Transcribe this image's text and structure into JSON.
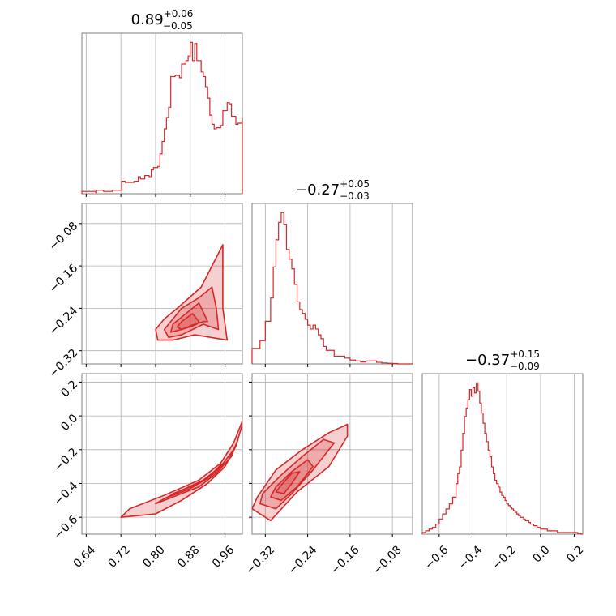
{
  "chart_data": {
    "type": "corner",
    "color": "#d62728",
    "grid": true,
    "parameters": [
      {
        "title": {
          "median": "0.89",
          "plus": "+0.06",
          "minus": "−0.05"
        },
        "range": [
          0.63,
          1.0
        ],
        "ticks": [
          0.64,
          0.72,
          0.8,
          0.88,
          0.96
        ],
        "tick_labels": [
          "0.64",
          "0.72",
          "0.80",
          "0.88",
          "0.96"
        ],
        "hist": {
          "x": [
            0.63,
            0.662,
            0.664,
            0.68,
            0.7,
            0.722,
            0.73,
            0.75,
            0.76,
            0.765,
            0.775,
            0.785,
            0.79,
            0.795,
            0.805,
            0.81,
            0.815,
            0.82,
            0.825,
            0.83,
            0.835,
            0.845,
            0.855,
            0.86,
            0.87,
            0.875,
            0.88,
            0.885,
            0.89,
            0.895,
            0.905,
            0.91,
            0.915,
            0.92,
            0.925,
            0.93,
            0.935,
            0.94,
            0.95,
            0.955,
            0.965,
            0.97,
            0.975,
            0.985,
            0.99,
            1.0
          ],
          "y": [
            1.0,
            0.5,
            1.5,
            1.0,
            1.5,
            5.5,
            5.0,
            5.5,
            7.5,
            6.5,
            8.0,
            7.5,
            10.5,
            11.5,
            12.0,
            17.5,
            23.0,
            28.5,
            33.5,
            38.0,
            51.5,
            52.0,
            51.0,
            57.0,
            58.5,
            60.5,
            66.5,
            58.5,
            66.0,
            58.5,
            53.5,
            51.5,
            47.0,
            42.0,
            34.5,
            30.5,
            28.5,
            29.0,
            30.0,
            36.5,
            40.0,
            39.5,
            34.0,
            30.5,
            31.0,
            33.0
          ]
        }
      },
      {
        "title": {
          "median": "−0.27",
          "plus": "+0.05",
          "minus": "−0.03"
        },
        "range": [
          -0.345,
          -0.042
        ],
        "ticks": [
          -0.32,
          -0.24,
          -0.16,
          -0.08
        ],
        "tick_labels": [
          "−0.32",
          "−0.24",
          "−0.16",
          "−0.08"
        ],
        "hist": {
          "x": [
            -0.345,
            -0.33,
            -0.32,
            -0.31,
            -0.305,
            -0.3,
            -0.295,
            -0.29,
            -0.285,
            -0.28,
            -0.275,
            -0.27,
            -0.265,
            -0.26,
            -0.255,
            -0.25,
            -0.245,
            -0.24,
            -0.235,
            -0.23,
            -0.225,
            -0.22,
            -0.215,
            -0.21,
            -0.205,
            -0.2,
            -0.19,
            -0.18,
            -0.17,
            -0.16,
            -0.15,
            -0.14,
            -0.13,
            -0.11,
            -0.1,
            -0.09,
            -0.08,
            -0.07
          ],
          "y": [
            8,
            12,
            22,
            34,
            50,
            64,
            73,
            78,
            72,
            59,
            54,
            49,
            41,
            32,
            28,
            26,
            23,
            20,
            18,
            20,
            18,
            15,
            13,
            9,
            7,
            7,
            4,
            4,
            3,
            2,
            1.5,
            1,
            1.5,
            0.8,
            0.5,
            0.3,
            0.2,
            0
          ]
        },
        "contours": [
          {
            "levels": [
              [
                [
                  0.965,
                  -0.3
                ],
                [
                  0.955,
                  -0.24
                ],
                [
                  0.955,
                  -0.12
                ],
                [
                  0.905,
                  -0.2
                ],
                [
                  0.85,
                  -0.24
                ],
                [
                  0.82,
                  -0.26
                ],
                [
                  0.8,
                  -0.28
                ],
                [
                  0.805,
                  -0.3
                ],
                [
                  0.84,
                  -0.3
                ],
                [
                  0.89,
                  -0.29
                ]
              ],
              [
                [
                  0.945,
                  -0.28
                ],
                [
                  0.94,
                  -0.24
                ],
                [
                  0.93,
                  -0.2
                ],
                [
                  0.9,
                  -0.22
                ],
                [
                  0.86,
                  -0.24
                ],
                [
                  0.83,
                  -0.27
                ],
                [
                  0.82,
                  -0.28
                ],
                [
                  0.83,
                  -0.295
                ],
                [
                  0.86,
                  -0.29
                ],
                [
                  0.91,
                  -0.27
                ]
              ],
              [
                [
                  0.92,
                  -0.265
                ],
                [
                  0.9,
                  -0.23
                ],
                [
                  0.87,
                  -0.25
                ],
                [
                  0.84,
                  -0.27
                ],
                [
                  0.835,
                  -0.285
                ],
                [
                  0.86,
                  -0.28
                ],
                [
                  0.89,
                  -0.27
                ],
                [
                  0.91,
                  -0.265
                ]
              ],
              [
                [
                  0.9,
                  -0.265
                ],
                [
                  0.885,
                  -0.25
                ],
                [
                  0.86,
                  -0.265
                ],
                [
                  0.85,
                  -0.275
                ],
                [
                  0.86,
                  -0.28
                ],
                [
                  0.88,
                  -0.275
                ],
                [
                  0.895,
                  -0.27
                ]
              ]
            ]
          }
        ]
      },
      {
        "title": {
          "median": "−0.37",
          "plus": "+0.15",
          "minus": "−0.09"
        },
        "range": [
          -0.7,
          0.25
        ],
        "ticks": [
          -0.6,
          -0.4,
          -0.2,
          0.0,
          0.2
        ],
        "tick_labels": [
          "−0.6",
          "−0.4",
          "−0.2",
          "0.0",
          "0.2"
        ],
        "hist": {
          "x": [
            -0.7,
            -0.68,
            -0.66,
            -0.64,
            -0.62,
            -0.6,
            -0.58,
            -0.56,
            -0.54,
            -0.52,
            -0.5,
            -0.49,
            -0.48,
            -0.47,
            -0.46,
            -0.45,
            -0.44,
            -0.43,
            -0.42,
            -0.41,
            -0.4,
            -0.39,
            -0.38,
            -0.37,
            -0.36,
            -0.35,
            -0.34,
            -0.33,
            -0.32,
            -0.31,
            -0.3,
            -0.29,
            -0.28,
            -0.27,
            -0.26,
            -0.25,
            -0.24,
            -0.23,
            -0.22,
            -0.21,
            -0.2,
            -0.19,
            -0.18,
            -0.17,
            -0.16,
            -0.15,
            -0.14,
            -0.13,
            -0.12,
            -0.11,
            -0.1,
            -0.09,
            -0.08,
            -0.07,
            -0.06,
            -0.05,
            -0.04,
            -0.03,
            -0.02,
            -0.01,
            0.0,
            0.02,
            0.04,
            0.06,
            0.08,
            0.1,
            0.12,
            0.14,
            0.16,
            0.18,
            0.2,
            0.22,
            0.24
          ],
          "y": [
            1,
            2,
            3,
            4,
            6,
            9,
            12,
            15,
            18,
            22,
            30,
            36,
            40,
            50,
            60,
            70,
            75,
            80,
            86,
            82,
            87,
            84,
            90,
            85,
            78,
            72,
            66,
            60,
            55,
            50,
            46,
            40,
            36,
            32,
            30,
            28,
            25,
            23,
            22,
            20,
            18,
            17,
            16,
            15,
            14,
            13,
            12,
            11,
            10,
            10,
            9,
            8,
            8,
            7,
            6,
            6,
            5,
            5,
            4,
            4,
            3,
            3,
            2,
            2,
            2,
            1,
            1,
            1,
            1,
            1,
            1,
            0.5,
            0
          ]
        },
        "contours": [
          {
            "levels": [
              [
                [
                  0.72,
                  -0.6
                ],
                [
                  0.8,
                  -0.58
                ],
                [
                  0.86,
                  -0.5
                ],
                [
                  0.92,
                  -0.4
                ],
                [
                  0.96,
                  -0.3
                ],
                [
                  0.985,
                  -0.18
                ],
                [
                  1.0,
                  -0.05
                ],
                [
                  1.0,
                  -0.03
                ],
                [
                  0.98,
                  -0.16
                ],
                [
                  0.95,
                  -0.28
                ],
                [
                  0.9,
                  -0.38
                ],
                [
                  0.82,
                  -0.47
                ],
                [
                  0.74,
                  -0.55
                ]
              ],
              [
                [
                  0.8,
                  -0.52
                ],
                [
                  0.84,
                  -0.48
                ],
                [
                  0.9,
                  -0.42
                ],
                [
                  0.94,
                  -0.34
                ],
                [
                  0.975,
                  -0.24
                ],
                [
                  0.99,
                  -0.14
                ],
                [
                  0.98,
                  -0.2
                ],
                [
                  0.95,
                  -0.3
                ],
                [
                  0.91,
                  -0.38
                ],
                [
                  0.86,
                  -0.44
                ],
                [
                  0.82,
                  -0.49
                ]
              ],
              [
                [
                  0.83,
                  -0.48
                ],
                [
                  0.88,
                  -0.43
                ],
                [
                  0.92,
                  -0.37
                ],
                [
                  0.95,
                  -0.29
                ],
                [
                  0.96,
                  -0.28
                ],
                [
                  0.93,
                  -0.35
                ],
                [
                  0.89,
                  -0.41
                ],
                [
                  0.84,
                  -0.46
                ]
              ]
            ]
          },
          {
            "levels": [
              [
                [
                  -0.345,
                  -0.55
                ],
                [
                  -0.31,
                  -0.62
                ],
                [
                  -0.26,
                  -0.45
                ],
                [
                  -0.2,
                  -0.3
                ],
                [
                  -0.165,
                  -0.12
                ],
                [
                  -0.165,
                  -0.05
                ],
                [
                  -0.2,
                  -0.1
                ],
                [
                  -0.25,
                  -0.2
                ],
                [
                  -0.3,
                  -0.32
                ],
                [
                  -0.335,
                  -0.48
                ]
              ],
              [
                [
                  -0.33,
                  -0.52
                ],
                [
                  -0.3,
                  -0.55
                ],
                [
                  -0.27,
                  -0.46
                ],
                [
                  -0.23,
                  -0.32
                ],
                [
                  -0.19,
                  -0.16
                ],
                [
                  -0.21,
                  -0.14
                ],
                [
                  -0.25,
                  -0.24
                ],
                [
                  -0.29,
                  -0.35
                ],
                [
                  -0.325,
                  -0.46
                ]
              ],
              [
                [
                  -0.31,
                  -0.48
                ],
                [
                  -0.29,
                  -0.5
                ],
                [
                  -0.26,
                  -0.42
                ],
                [
                  -0.23,
                  -0.3
                ],
                [
                  -0.24,
                  -0.26
                ],
                [
                  -0.27,
                  -0.33
                ],
                [
                  -0.3,
                  -0.42
                ]
              ],
              [
                [
                  -0.3,
                  -0.45
                ],
                [
                  -0.285,
                  -0.46
                ],
                [
                  -0.27,
                  -0.4
                ],
                [
                  -0.255,
                  -0.33
                ],
                [
                  -0.27,
                  -0.34
                ],
                [
                  -0.29,
                  -0.41
                ]
              ]
            ]
          },
          null
        ]
      }
    ]
  }
}
